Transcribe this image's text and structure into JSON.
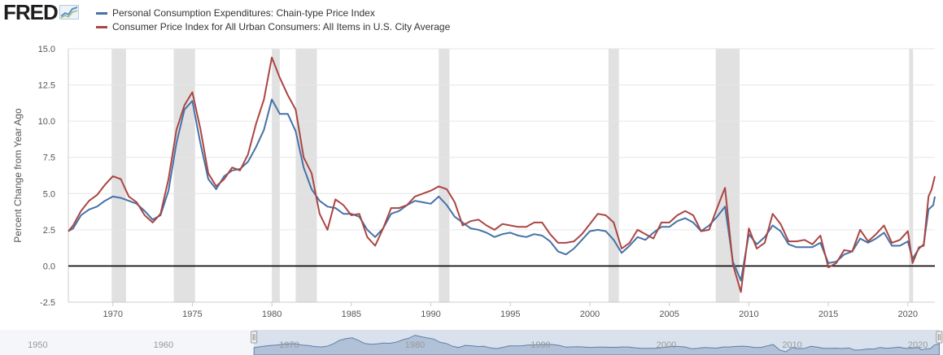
{
  "brand": {
    "name": "FRED",
    "graph_icon": "line-graph-icon"
  },
  "chart_data": {
    "type": "line",
    "title": "",
    "xlabel": "",
    "ylabel": "Percent Change from Year Ago",
    "xlim": [
      1967.2,
      2021.7
    ],
    "ylim": [
      -2.5,
      15.0
    ],
    "y_ticks": [
      "-2.5",
      "0.0",
      "2.5",
      "5.0",
      "7.5",
      "10.0",
      "12.5",
      "15.0"
    ],
    "x_ticks": [
      "1970",
      "1975",
      "1980",
      "1985",
      "1990",
      "1995",
      "2000",
      "2005",
      "2010",
      "2015",
      "2020"
    ],
    "zero_line": 0,
    "grid": "horizontal",
    "legend": "top-left",
    "recessions": [
      [
        1969.92,
        1970.83
      ],
      [
        1973.83,
        1975.17
      ],
      [
        1980.0,
        1980.5
      ],
      [
        1981.5,
        1982.83
      ],
      [
        1990.5,
        1991.17
      ],
      [
        2001.17,
        2001.83
      ],
      [
        2007.92,
        2009.42
      ],
      [
        2020.08,
        2020.33
      ]
    ],
    "series": [
      {
        "name": "Personal Consumption Expenditures: Chain-type Price Index",
        "color": "#4572a7",
        "points": [
          [
            1967.2,
            2.4
          ],
          [
            1967.5,
            2.6
          ],
          [
            1968.0,
            3.5
          ],
          [
            1968.5,
            3.9
          ],
          [
            1969.0,
            4.1
          ],
          [
            1969.5,
            4.5
          ],
          [
            1970.0,
            4.8
          ],
          [
            1970.5,
            4.7
          ],
          [
            1971.0,
            4.5
          ],
          [
            1971.5,
            4.3
          ],
          [
            1972.0,
            3.8
          ],
          [
            1972.5,
            3.2
          ],
          [
            1973.0,
            3.5
          ],
          [
            1973.5,
            5.2
          ],
          [
            1974.0,
            8.5
          ],
          [
            1974.5,
            10.8
          ],
          [
            1975.0,
            11.4
          ],
          [
            1975.5,
            8.5
          ],
          [
            1976.0,
            6.0
          ],
          [
            1976.5,
            5.3
          ],
          [
            1977.0,
            6.2
          ],
          [
            1977.5,
            6.6
          ],
          [
            1978.0,
            6.7
          ],
          [
            1978.5,
            7.2
          ],
          [
            1979.0,
            8.2
          ],
          [
            1979.5,
            9.4
          ],
          [
            1980.0,
            11.5
          ],
          [
            1980.5,
            10.5
          ],
          [
            1981.0,
            10.5
          ],
          [
            1981.5,
            9.3
          ],
          [
            1982.0,
            6.8
          ],
          [
            1982.5,
            5.3
          ],
          [
            1983.0,
            4.5
          ],
          [
            1983.5,
            4.1
          ],
          [
            1984.0,
            4.0
          ],
          [
            1984.5,
            3.6
          ],
          [
            1985.0,
            3.6
          ],
          [
            1985.5,
            3.4
          ],
          [
            1986.0,
            2.5
          ],
          [
            1986.5,
            2.0
          ],
          [
            1987.0,
            2.6
          ],
          [
            1987.5,
            3.6
          ],
          [
            1988.0,
            3.8
          ],
          [
            1988.5,
            4.2
          ],
          [
            1989.0,
            4.5
          ],
          [
            1989.5,
            4.4
          ],
          [
            1990.0,
            4.3
          ],
          [
            1990.5,
            4.8
          ],
          [
            1991.0,
            4.2
          ],
          [
            1991.5,
            3.4
          ],
          [
            1992.0,
            3.0
          ],
          [
            1992.5,
            2.6
          ],
          [
            1993.0,
            2.5
          ],
          [
            1993.5,
            2.3
          ],
          [
            1994.0,
            2.0
          ],
          [
            1994.5,
            2.2
          ],
          [
            1995.0,
            2.3
          ],
          [
            1995.5,
            2.1
          ],
          [
            1996.0,
            2.0
          ],
          [
            1996.5,
            2.2
          ],
          [
            1997.0,
            2.1
          ],
          [
            1997.5,
            1.7
          ],
          [
            1998.0,
            1.0
          ],
          [
            1998.5,
            0.8
          ],
          [
            1999.0,
            1.2
          ],
          [
            1999.5,
            1.8
          ],
          [
            2000.0,
            2.4
          ],
          [
            2000.5,
            2.5
          ],
          [
            2001.0,
            2.4
          ],
          [
            2001.5,
            1.8
          ],
          [
            2002.0,
            0.9
          ],
          [
            2002.5,
            1.4
          ],
          [
            2003.0,
            2.0
          ],
          [
            2003.5,
            1.8
          ],
          [
            2004.0,
            2.3
          ],
          [
            2004.5,
            2.7
          ],
          [
            2005.0,
            2.7
          ],
          [
            2005.5,
            3.1
          ],
          [
            2006.0,
            3.3
          ],
          [
            2006.5,
            3.0
          ],
          [
            2007.0,
            2.4
          ],
          [
            2007.5,
            2.8
          ],
          [
            2008.0,
            3.4
          ],
          [
            2008.5,
            4.1
          ],
          [
            2009.0,
            0.3
          ],
          [
            2009.5,
            -1.0
          ],
          [
            2010.0,
            2.2
          ],
          [
            2010.5,
            1.5
          ],
          [
            2011.0,
            2.0
          ],
          [
            2011.5,
            2.8
          ],
          [
            2012.0,
            2.4
          ],
          [
            2012.5,
            1.5
          ],
          [
            2013.0,
            1.3
          ],
          [
            2013.5,
            1.3
          ],
          [
            2014.0,
            1.3
          ],
          [
            2014.5,
            1.6
          ],
          [
            2015.0,
            0.2
          ],
          [
            2015.5,
            0.3
          ],
          [
            2016.0,
            0.8
          ],
          [
            2016.5,
            1.0
          ],
          [
            2017.0,
            1.9
          ],
          [
            2017.5,
            1.6
          ],
          [
            2018.0,
            1.9
          ],
          [
            2018.5,
            2.3
          ],
          [
            2019.0,
            1.4
          ],
          [
            2019.5,
            1.4
          ],
          [
            2020.0,
            1.7
          ],
          [
            2020.3,
            0.5
          ],
          [
            2020.7,
            1.2
          ],
          [
            2021.0,
            1.5
          ],
          [
            2021.3,
            3.9
          ],
          [
            2021.6,
            4.2
          ],
          [
            2021.7,
            4.8
          ]
        ]
      },
      {
        "name": "Consumer Price Index for All Urban Consumers: All Items in U.S. City Average",
        "color": "#aa4643",
        "points": [
          [
            1967.2,
            2.4
          ],
          [
            1967.5,
            2.8
          ],
          [
            1968.0,
            3.8
          ],
          [
            1968.5,
            4.5
          ],
          [
            1969.0,
            4.9
          ],
          [
            1969.5,
            5.6
          ],
          [
            1970.0,
            6.2
          ],
          [
            1970.5,
            6.0
          ],
          [
            1971.0,
            4.8
          ],
          [
            1971.5,
            4.4
          ],
          [
            1972.0,
            3.5
          ],
          [
            1972.5,
            3.0
          ],
          [
            1973.0,
            3.6
          ],
          [
            1973.5,
            6.0
          ],
          [
            1974.0,
            9.4
          ],
          [
            1974.5,
            11.1
          ],
          [
            1975.0,
            12.0
          ],
          [
            1975.5,
            9.5
          ],
          [
            1976.0,
            6.4
          ],
          [
            1976.5,
            5.5
          ],
          [
            1977.0,
            6.0
          ],
          [
            1977.5,
            6.8
          ],
          [
            1978.0,
            6.6
          ],
          [
            1978.5,
            7.7
          ],
          [
            1979.0,
            9.8
          ],
          [
            1979.5,
            11.5
          ],
          [
            1980.0,
            14.4
          ],
          [
            1980.5,
            13.0
          ],
          [
            1981.0,
            11.8
          ],
          [
            1981.5,
            10.8
          ],
          [
            1982.0,
            7.5
          ],
          [
            1982.5,
            6.4
          ],
          [
            1983.0,
            3.6
          ],
          [
            1983.5,
            2.5
          ],
          [
            1984.0,
            4.6
          ],
          [
            1984.5,
            4.2
          ],
          [
            1985.0,
            3.5
          ],
          [
            1985.5,
            3.6
          ],
          [
            1986.0,
            2.0
          ],
          [
            1986.5,
            1.4
          ],
          [
            1987.0,
            2.6
          ],
          [
            1987.5,
            4.0
          ],
          [
            1988.0,
            4.0
          ],
          [
            1988.5,
            4.2
          ],
          [
            1989.0,
            4.8
          ],
          [
            1989.5,
            5.0
          ],
          [
            1990.0,
            5.2
          ],
          [
            1990.5,
            5.5
          ],
          [
            1991.0,
            5.3
          ],
          [
            1991.5,
            4.4
          ],
          [
            1992.0,
            2.8
          ],
          [
            1992.5,
            3.1
          ],
          [
            1993.0,
            3.2
          ],
          [
            1993.5,
            2.8
          ],
          [
            1994.0,
            2.5
          ],
          [
            1994.5,
            2.9
          ],
          [
            1995.0,
            2.8
          ],
          [
            1995.5,
            2.7
          ],
          [
            1996.0,
            2.7
          ],
          [
            1996.5,
            3.0
          ],
          [
            1997.0,
            3.0
          ],
          [
            1997.5,
            2.2
          ],
          [
            1998.0,
            1.6
          ],
          [
            1998.5,
            1.6
          ],
          [
            1999.0,
            1.7
          ],
          [
            1999.5,
            2.2
          ],
          [
            2000.0,
            2.9
          ],
          [
            2000.5,
            3.6
          ],
          [
            2001.0,
            3.5
          ],
          [
            2001.5,
            3.0
          ],
          [
            2002.0,
            1.2
          ],
          [
            2002.5,
            1.6
          ],
          [
            2003.0,
            2.5
          ],
          [
            2003.5,
            2.2
          ],
          [
            2004.0,
            1.9
          ],
          [
            2004.5,
            3.0
          ],
          [
            2005.0,
            3.0
          ],
          [
            2005.5,
            3.5
          ],
          [
            2006.0,
            3.8
          ],
          [
            2006.5,
            3.5
          ],
          [
            2007.0,
            2.4
          ],
          [
            2007.5,
            2.5
          ],
          [
            2008.0,
            4.0
          ],
          [
            2008.5,
            5.4
          ],
          [
            2009.0,
            0.1
          ],
          [
            2009.5,
            -1.8
          ],
          [
            2010.0,
            2.6
          ],
          [
            2010.5,
            1.2
          ],
          [
            2011.0,
            1.6
          ],
          [
            2011.5,
            3.6
          ],
          [
            2012.0,
            2.9
          ],
          [
            2012.5,
            1.7
          ],
          [
            2013.0,
            1.7
          ],
          [
            2013.5,
            1.8
          ],
          [
            2014.0,
            1.5
          ],
          [
            2014.5,
            2.1
          ],
          [
            2015.0,
            -0.1
          ],
          [
            2015.5,
            0.2
          ],
          [
            2016.0,
            1.1
          ],
          [
            2016.5,
            1.0
          ],
          [
            2017.0,
            2.5
          ],
          [
            2017.5,
            1.7
          ],
          [
            2018.0,
            2.2
          ],
          [
            2018.5,
            2.8
          ],
          [
            2019.0,
            1.6
          ],
          [
            2019.5,
            1.8
          ],
          [
            2020.0,
            2.4
          ],
          [
            2020.3,
            0.2
          ],
          [
            2020.7,
            1.3
          ],
          [
            2021.0,
            1.4
          ],
          [
            2021.3,
            4.8
          ],
          [
            2021.5,
            5.3
          ],
          [
            2021.7,
            6.2
          ]
        ]
      }
    ]
  },
  "navigator": {
    "x_ticks": [
      "1950",
      "1960",
      "1970",
      "1980",
      "1990",
      "2000",
      "2010",
      "2020"
    ],
    "range_start": 1967.2,
    "range_end": 2021.7,
    "full_range": [
      1947,
      2022
    ]
  }
}
